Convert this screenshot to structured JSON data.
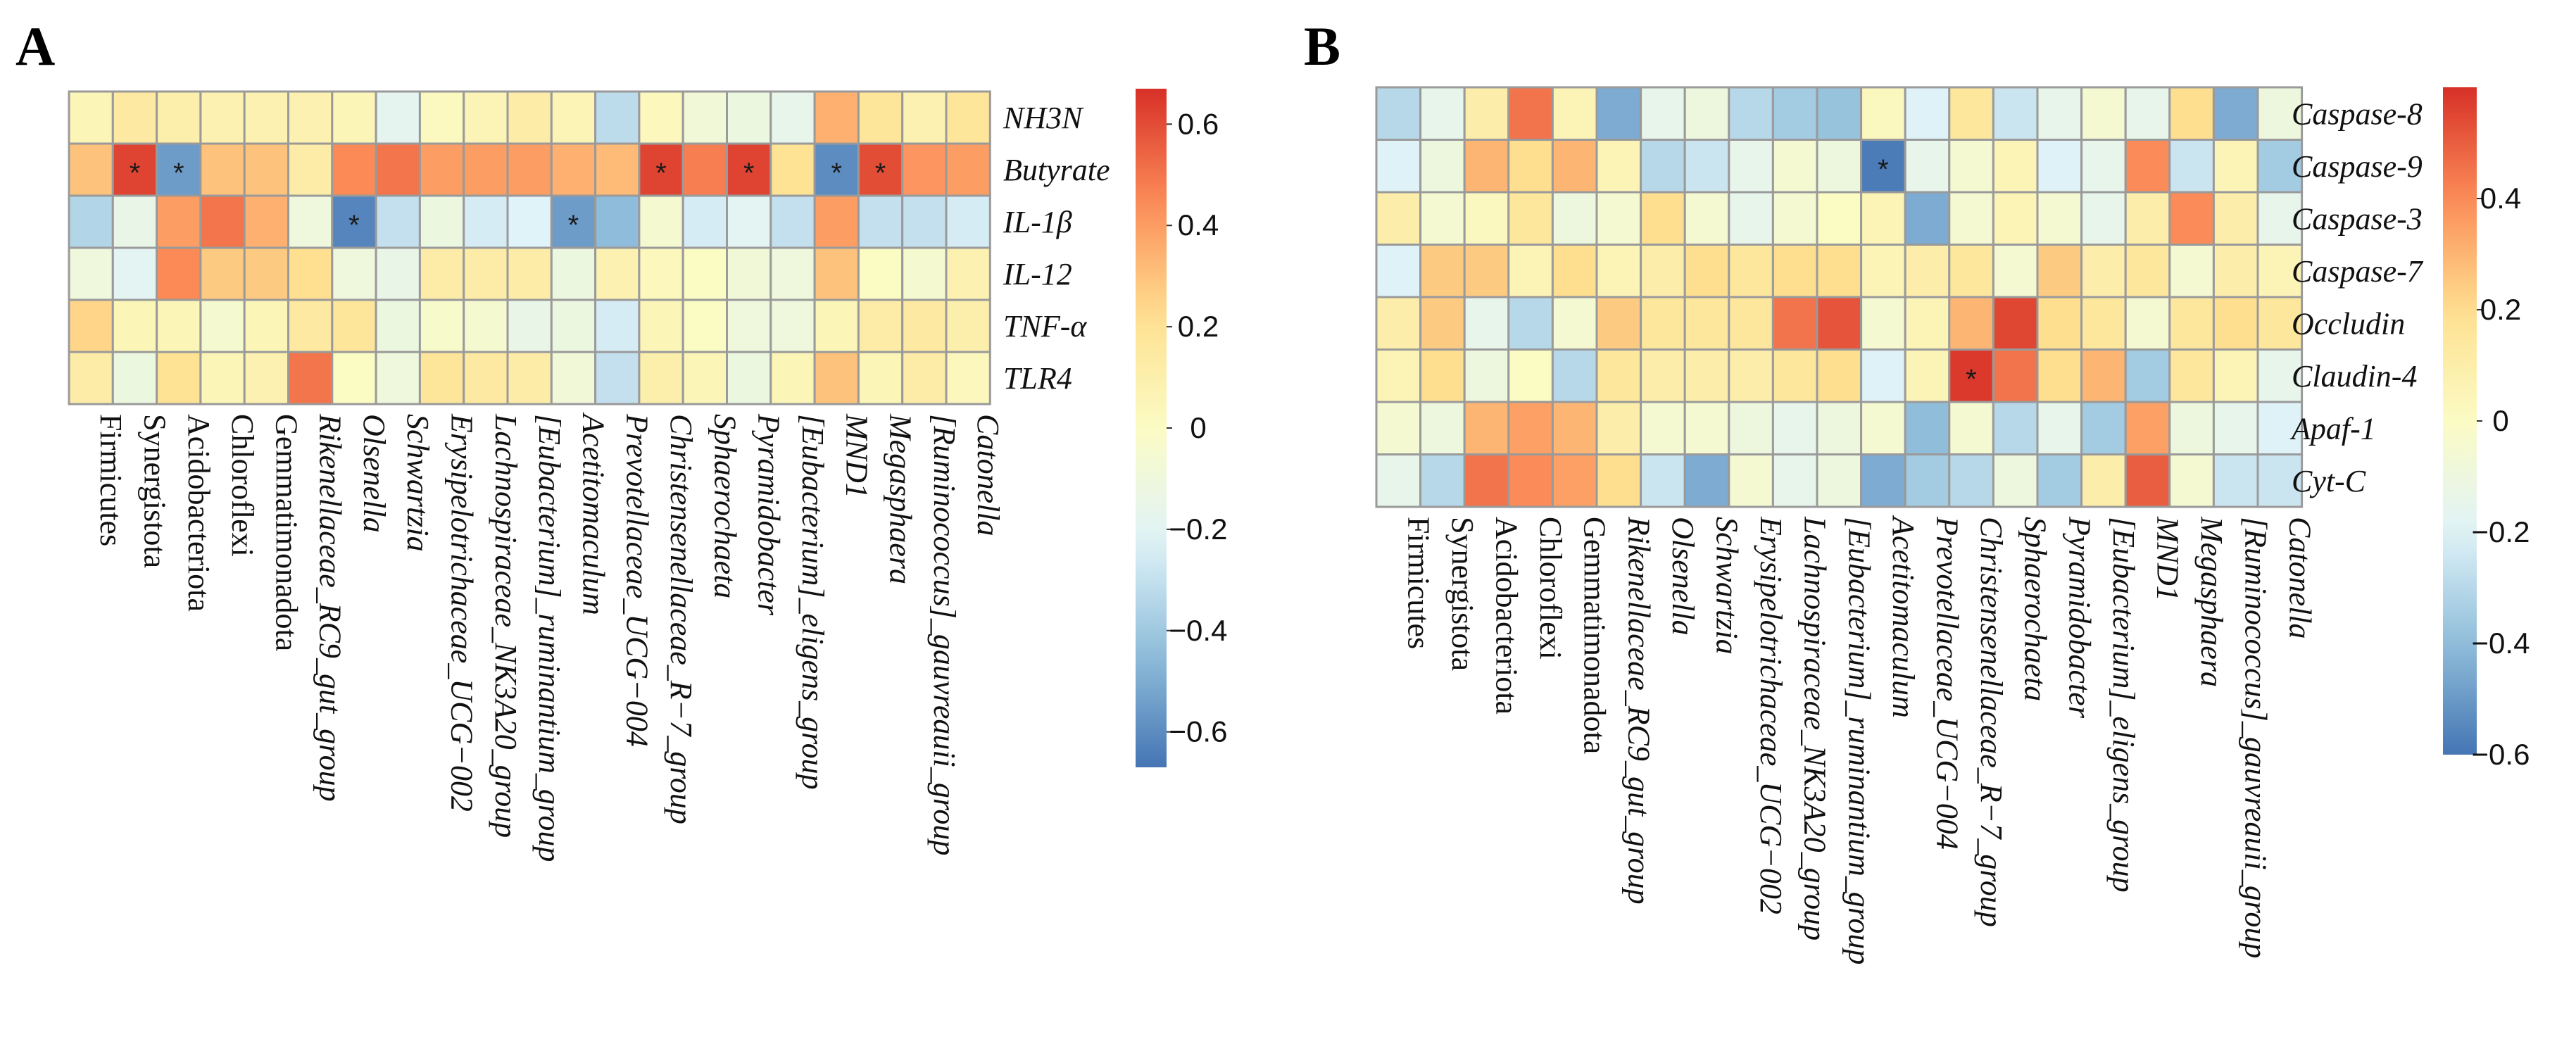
{
  "chart_data": [
    {
      "type": "heatmap",
      "panel": "A",
      "rows": [
        "NH3N",
        "Butyrate",
        "IL-1β",
        "IL-12",
        "TNF-α",
        "TLR4"
      ],
      "columns": [
        "Firmicutes",
        "Synergistota",
        "Acidobacteriota",
        "Chloroflexi",
        "Gemmatimonadota",
        "Rikenellaceae_RC9_gut_group",
        "Olsenella",
        "Schwartzia",
        "Erysipelotrichaceae_UCG−002",
        "Lachnospiraceae_NK3A20_group",
        "[Eubacterium]_ruminantium_group",
        "Acetitomaculum",
        "Prevotellaceae_UCG−004",
        "Christensenellaceae_R−7_group",
        "Sphaerochaeta",
        "Pyramidobacter",
        "[Eubacterium]_eligens_group",
        "MND1",
        "Megasphaera",
        "[Ruminococcus]_gauvreauii_group",
        "Catonella"
      ],
      "italic_columns": [
        5,
        6,
        7,
        8,
        9,
        10,
        11,
        12,
        13,
        14,
        15,
        16,
        17,
        18,
        19,
        20
      ],
      "values": [
        [
          0.05,
          0.15,
          0.1,
          0.08,
          0.08,
          0.08,
          0.05,
          -0.18,
          0.02,
          0.06,
          0.12,
          0.06,
          -0.32,
          0.03,
          -0.08,
          -0.12,
          -0.16,
          0.35,
          0.18,
          0.08,
          0.18
        ],
        [
          0.3,
          0.62,
          -0.55,
          0.3,
          0.3,
          0.12,
          0.45,
          0.5,
          0.4,
          0.4,
          0.4,
          0.35,
          0.32,
          0.62,
          0.48,
          0.62,
          0.2,
          -0.6,
          0.6,
          0.42,
          0.4
        ],
        [
          -0.35,
          -0.15,
          0.4,
          0.5,
          0.35,
          -0.1,
          -0.62,
          -0.3,
          -0.12,
          -0.25,
          -0.22,
          -0.55,
          -0.45,
          -0.05,
          -0.25,
          -0.2,
          -0.3,
          0.4,
          -0.3,
          -0.3,
          -0.25
        ],
        [
          -0.1,
          -0.2,
          0.45,
          0.28,
          0.28,
          0.22,
          -0.1,
          -0.15,
          0.12,
          0.12,
          0.12,
          -0.12,
          0.08,
          0.03,
          0.0,
          -0.08,
          -0.1,
          0.3,
          0.0,
          -0.05,
          0.08
        ],
        [
          0.25,
          0.05,
          0.05,
          -0.05,
          0.05,
          0.15,
          0.18,
          -0.12,
          -0.03,
          -0.05,
          -0.15,
          -0.12,
          -0.25,
          0.05,
          0.0,
          -0.1,
          -0.1,
          0.05,
          0.12,
          0.15,
          0.1
        ],
        [
          0.12,
          -0.12,
          0.2,
          0.05,
          0.08,
          0.5,
          0.0,
          -0.1,
          0.18,
          0.15,
          0.12,
          -0.08,
          -0.3,
          0.1,
          0.05,
          -0.12,
          0.05,
          0.3,
          0.05,
          0.12,
          0.03
        ]
      ],
      "significance": [
        [
          1,
          1
        ],
        [
          1,
          2
        ],
        [
          1,
          13
        ],
        [
          1,
          15
        ],
        [
          1,
          17
        ],
        [
          1,
          18
        ],
        [
          2,
          6
        ],
        [
          2,
          11
        ]
      ],
      "significance_marker": "*",
      "colorbar": {
        "min": -0.67,
        "max": 0.67,
        "ticks": [
          "0.6",
          "0.4",
          "0.2",
          "0",
          "−0.2",
          "−0.4",
          "−0.6"
        ],
        "tick_values": [
          0.6,
          0.4,
          0.2,
          0,
          -0.2,
          -0.4,
          -0.6
        ]
      }
    },
    {
      "type": "heatmap",
      "panel": "B",
      "rows": [
        "Caspase-8",
        "Caspase-9",
        "Caspase-3",
        "Caspase-7",
        "Occludin",
        "Claudin-4",
        "Apaf-1",
        "Cyt-C"
      ],
      "columns": [
        "Firmicutes",
        "Synergistota",
        "Acidobacteriota",
        "Chloroflexi",
        "Gemmatimonadota",
        "Rikenellaceae_RC9_gut_group",
        "Olsenella",
        "Schwartzia",
        "Erysipelotrichaceae_UCG−002",
        "Lachnospiraceae_NK3A20_group",
        "[Eubacterium]_ruminantium_group",
        "Acetitomaculum",
        "Prevotellaceae_UCG−004",
        "Christensenellaceae_R−7_group",
        "Sphaerochaeta",
        "Pyramidobacter",
        "[Eubacterium]_eligens_group",
        "MND1",
        "Megasphaera",
        "[Ruminococcus]_gauvreauii_group",
        "Catonella"
      ],
      "italic_columns": [
        5,
        6,
        7,
        8,
        9,
        10,
        11,
        12,
        13,
        14,
        15,
        16,
        17,
        18,
        19,
        20
      ],
      "values": [
        [
          -0.3,
          -0.15,
          0.1,
          0.45,
          0.05,
          -0.45,
          -0.15,
          -0.1,
          -0.3,
          -0.35,
          -0.38,
          0.02,
          -0.2,
          0.15,
          -0.25,
          -0.15,
          -0.05,
          -0.15,
          0.2,
          -0.45,
          -0.1
        ],
        [
          -0.2,
          -0.1,
          0.3,
          0.2,
          0.3,
          0.05,
          -0.3,
          -0.25,
          -0.15,
          -0.05,
          -0.1,
          -0.58,
          -0.15,
          -0.05,
          0.05,
          -0.2,
          -0.15,
          0.4,
          -0.25,
          0.05,
          -0.35
        ],
        [
          0.1,
          -0.05,
          0.02,
          0.15,
          -0.1,
          -0.05,
          0.2,
          -0.05,
          -0.15,
          -0.05,
          0.0,
          0.05,
          -0.45,
          -0.05,
          0.05,
          -0.05,
          -0.15,
          0.1,
          0.4,
          0.1,
          -0.15
        ],
        [
          -0.2,
          0.25,
          0.25,
          0.05,
          0.2,
          0.05,
          0.1,
          0.2,
          0.15,
          0.2,
          0.2,
          0.05,
          0.1,
          0.15,
          -0.05,
          0.25,
          0.1,
          0.15,
          -0.05,
          0.1,
          0.05
        ],
        [
          0.1,
          0.25,
          -0.15,
          -0.3,
          -0.05,
          0.25,
          0.15,
          0.15,
          0.15,
          0.45,
          0.52,
          -0.05,
          0.05,
          0.3,
          0.55,
          0.2,
          0.15,
          -0.05,
          0.15,
          0.2,
          0.15
        ],
        [
          0.05,
          0.2,
          -0.1,
          0.0,
          -0.3,
          0.15,
          0.1,
          0.1,
          0.1,
          0.15,
          0.2,
          -0.2,
          0.05,
          0.58,
          0.45,
          0.2,
          0.3,
          -0.35,
          0.15,
          0.05,
          -0.15
        ],
        [
          -0.05,
          -0.1,
          0.3,
          0.35,
          0.3,
          0.1,
          -0.05,
          -0.05,
          -0.1,
          -0.15,
          -0.1,
          -0.05,
          -0.4,
          -0.05,
          -0.3,
          -0.15,
          -0.35,
          0.35,
          -0.1,
          -0.15,
          -0.2
        ],
        [
          -0.15,
          -0.3,
          0.45,
          0.4,
          0.35,
          0.2,
          -0.25,
          -0.45,
          -0.05,
          -0.15,
          -0.1,
          -0.45,
          -0.35,
          -0.3,
          -0.1,
          -0.35,
          0.1,
          0.5,
          -0.05,
          -0.25,
          -0.25
        ]
      ],
      "significance": [
        [
          1,
          11
        ],
        [
          5,
          13
        ]
      ],
      "significance_marker": "*",
      "colorbar": {
        "min": -0.6,
        "max": 0.6,
        "ticks": [
          "0.4",
          "0.2",
          "0",
          "−0.2",
          "−0.4",
          "−0.6"
        ],
        "tick_values": [
          0.4,
          0.2,
          0,
          -0.2,
          -0.4,
          -0.6
        ]
      }
    }
  ],
  "colors": {
    "low": "#4575b4",
    "mid": "#fbfbc4",
    "high": "#d73027",
    "cell_border": "#9a9a9a"
  }
}
